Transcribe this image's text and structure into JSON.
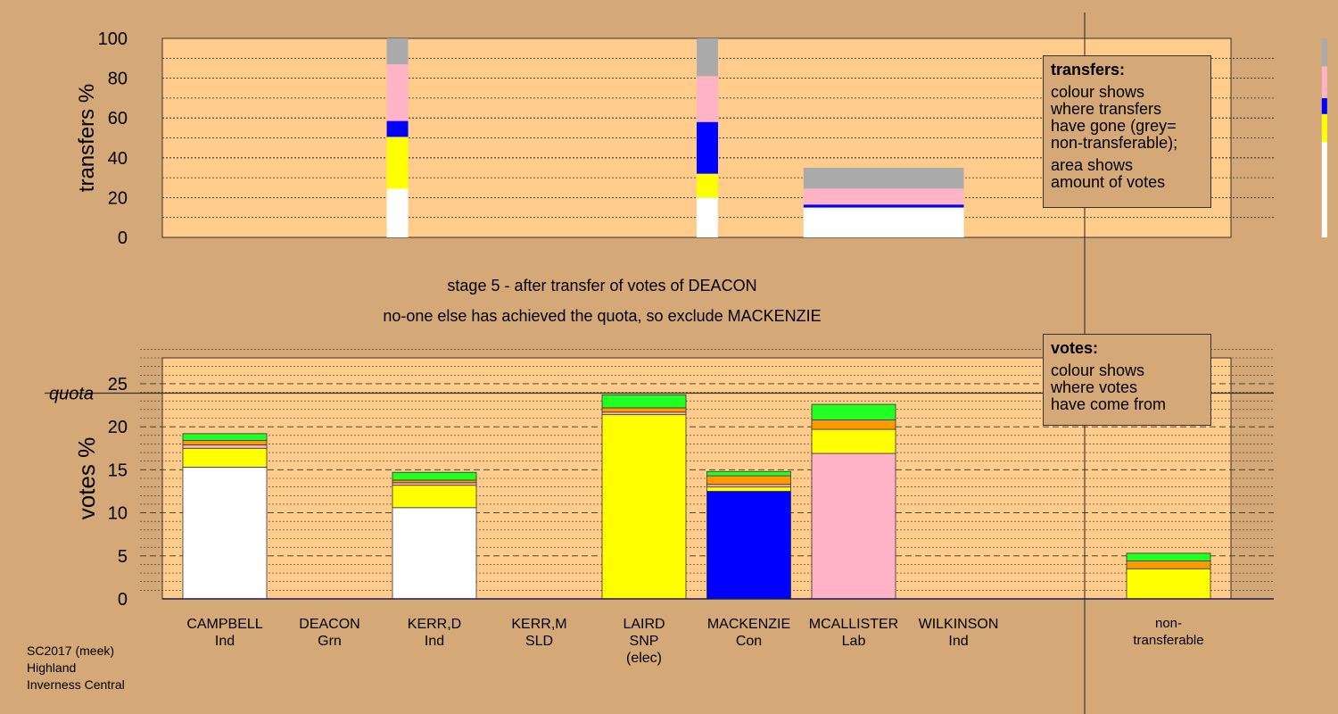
{
  "caption": {
    "line1": "stage 5 - after transfer of votes of DEACON",
    "line2": "no-one else has achieved the quota, so exclude MACKENZIE"
  },
  "footer": [
    "SC2017 (meek)",
    "Highland",
    "Inverness Central"
  ],
  "legend_transfers": {
    "title": "transfers:",
    "p1": [
      "colour shows",
      "where transfers",
      "have gone (grey=",
      "non-transferable);"
    ],
    "p2": [
      "area shows",
      "amount of votes"
    ]
  },
  "legend_votes": {
    "title": "votes:",
    "p1": [
      "colour shows",
      "where votes",
      "have come from"
    ]
  },
  "colors": {
    "white": "#ffffff",
    "yellow": "#ffff00",
    "blue": "#0000ff",
    "pink": "#ffb3c6",
    "grey": "#aaaaaa",
    "green": "#22ff22",
    "orange": "#ff9900",
    "background": "#d4a977",
    "plot": "#ffcc8c"
  },
  "chart_data": [
    {
      "type": "bar",
      "subtype": "stacked-variable-width",
      "ylabel": "transfers %",
      "ylim": [
        0,
        100
      ],
      "yticks": [
        0,
        20,
        40,
        60,
        80,
        100
      ],
      "bars": [
        {
          "x_from": 0.21,
          "x_to": 0.23,
          "segments": [
            {
              "color": "white",
              "value": 24.5
            },
            {
              "color": "yellow",
              "value": 26
            },
            {
              "color": "blue",
              "value": 8
            },
            {
              "color": "pink",
              "value": 28.5
            },
            {
              "color": "grey",
              "value": 13
            }
          ]
        },
        {
          "x_from": 0.5,
          "x_to": 0.52,
          "segments": [
            {
              "color": "white",
              "value": 20
            },
            {
              "color": "yellow",
              "value": 12
            },
            {
              "color": "blue",
              "value": 26
            },
            {
              "color": "pink",
              "value": 23
            },
            {
              "color": "grey",
              "value": 19
            }
          ]
        },
        {
          "x_from": 0.6,
          "x_to": 0.75,
          "segments": [
            {
              "color": "white",
              "value": 15
            },
            {
              "color": "blue",
              "value": 1.5
            },
            {
              "color": "pink",
              "value": 8
            },
            {
              "color": "grey",
              "value": 10.5
            }
          ]
        },
        {
          "x_from": 1.085,
          "x_to": 1.09,
          "segments": [
            {
              "color": "white",
              "value": 48
            },
            {
              "color": "yellow",
              "value": 14
            },
            {
              "color": "blue",
              "value": 8
            },
            {
              "color": "pink",
              "value": 16
            },
            {
              "color": "grey",
              "value": 14
            }
          ]
        }
      ]
    },
    {
      "type": "bar",
      "subtype": "stacked",
      "ylabel": "votes %",
      "ylim": [
        0,
        28
      ],
      "yticks": [
        0,
        5,
        10,
        15,
        20,
        25
      ],
      "quota": 23.9,
      "quota_label": "quota",
      "categories": [
        {
          "name": "CAMPBELL",
          "party": "Ind",
          "note": ""
        },
        {
          "name": "DEACON",
          "party": "Grn",
          "note": ""
        },
        {
          "name": "KERR,D",
          "party": "Ind",
          "note": ""
        },
        {
          "name": "KERR,M",
          "party": "SLD",
          "note": ""
        },
        {
          "name": "LAIRD",
          "party": "SNP",
          "note": "(elec)"
        },
        {
          "name": "MACKENZIE",
          "party": "Con",
          "note": ""
        },
        {
          "name": "MCALLISTER",
          "party": "Lab",
          "note": ""
        },
        {
          "name": "WILKINSON",
          "party": "Ind",
          "note": ""
        }
      ],
      "stacks": [
        [
          {
            "color": "white",
            "value": 15.3
          },
          {
            "color": "yellow",
            "value": 2.2
          },
          {
            "color": "pink",
            "value": 0.4
          },
          {
            "color": "orange",
            "value": 0.5
          },
          {
            "color": "green",
            "value": 0.8
          }
        ],
        [],
        [
          {
            "color": "white",
            "value": 10.6
          },
          {
            "color": "yellow",
            "value": 2.6
          },
          {
            "color": "pink",
            "value": 0.3
          },
          {
            "color": "orange",
            "value": 0.3
          },
          {
            "color": "green",
            "value": 0.9
          }
        ],
        [],
        [
          {
            "color": "yellow",
            "value": 21.4
          },
          {
            "color": "pink",
            "value": 0.3
          },
          {
            "color": "orange",
            "value": 0.5
          },
          {
            "color": "green",
            "value": 1.5
          }
        ],
        [
          {
            "color": "blue",
            "value": 12.5
          },
          {
            "color": "yellow",
            "value": 0.5
          },
          {
            "color": "pink",
            "value": 0.3
          },
          {
            "color": "orange",
            "value": 1.0
          },
          {
            "color": "green",
            "value": 0.5
          }
        ],
        [
          {
            "color": "pink",
            "value": 16.9
          },
          {
            "color": "yellow",
            "value": 2.8
          },
          {
            "color": "orange",
            "value": 1.1
          },
          {
            "color": "green",
            "value": 1.8
          }
        ],
        []
      ],
      "nontransferable": {
        "label": [
          "non-",
          "transferable"
        ],
        "stack": [
          {
            "color": "yellow",
            "value": 3.5
          },
          {
            "color": "orange",
            "value": 0.9
          },
          {
            "color": "green",
            "value": 0.9
          }
        ]
      }
    }
  ]
}
